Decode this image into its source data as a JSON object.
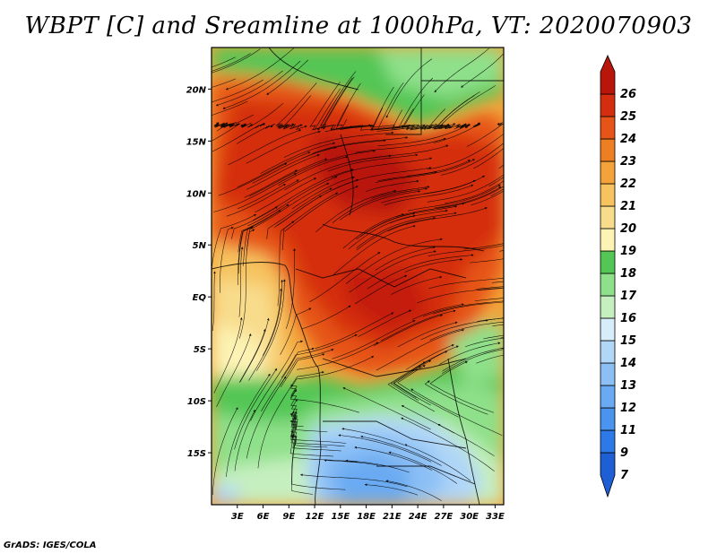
{
  "title": "WBPT [C] and Sreamline at 1000hPa, VT: 2020070903",
  "credit": "GrADS: IGES/COLA",
  "map": {
    "lon_range": [
      0,
      34
    ],
    "lat_range": [
      -20,
      24
    ],
    "lat_ticks": [
      {
        "value": 20,
        "label": "20N"
      },
      {
        "value": 15,
        "label": "15N"
      },
      {
        "value": 10,
        "label": "10N"
      },
      {
        "value": 5,
        "label": "5N"
      },
      {
        "value": 0,
        "label": "EQ"
      },
      {
        "value": -5,
        "label": "5S"
      },
      {
        "value": -10,
        "label": "10S"
      },
      {
        "value": -15,
        "label": "15S"
      }
    ],
    "lon_ticks": [
      {
        "value": 3,
        "label": "3E"
      },
      {
        "value": 6,
        "label": "6E"
      },
      {
        "value": 9,
        "label": "9E"
      },
      {
        "value": 12,
        "label": "12E"
      },
      {
        "value": 15,
        "label": "15E"
      },
      {
        "value": 18,
        "label": "18E"
      },
      {
        "value": 21,
        "label": "21E"
      },
      {
        "value": 24,
        "label": "24E"
      },
      {
        "value": 27,
        "label": "27E"
      },
      {
        "value": 30,
        "label": "30E"
      },
      {
        "value": 33,
        "label": "33E"
      }
    ]
  },
  "colorbar": {
    "levels": [
      "7",
      "9",
      "11",
      "12",
      "13",
      "14",
      "15",
      "16",
      "17",
      "18",
      "19",
      "20",
      "21",
      "22",
      "23",
      "24",
      "25",
      "26"
    ],
    "colors": [
      "#1f5fd6",
      "#2e79e8",
      "#4a93ee",
      "#6aaaf2",
      "#8cc0f5",
      "#b0d6f8",
      "#d7eefa",
      "#c6efc0",
      "#8fe08a",
      "#53c655",
      "#fcf3b4",
      "#f8dc8c",
      "#f6c35e",
      "#f3a33a",
      "#ee7e22",
      "#e65418",
      "#d42e10",
      "#b8160a"
    ]
  }
}
